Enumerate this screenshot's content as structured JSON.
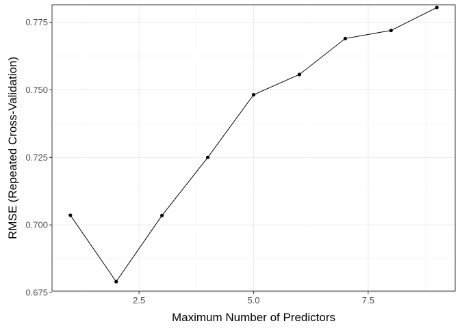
{
  "chart_data": {
    "type": "line",
    "title": "",
    "xlabel": "Maximum Number of Predictors",
    "ylabel": "RMSE (Repeated Cross-Validation)",
    "x": [
      1,
      2,
      3,
      4,
      5,
      6,
      7,
      8,
      9
    ],
    "series": [
      {
        "values": [
          0.7036,
          0.679,
          0.7035,
          0.725,
          0.7482,
          0.7557,
          0.769,
          0.772,
          0.7805
        ]
      }
    ],
    "xlim": [
      0.6,
      9.4
    ],
    "ylim": [
      0.6755,
      0.7815
    ],
    "xticks": [
      2.5,
      5.0,
      7.5
    ],
    "xtick_labels": [
      "2.5",
      "5.0",
      "7.5"
    ],
    "yticks": [
      0.675,
      0.7,
      0.725,
      0.75,
      0.775
    ],
    "ytick_labels": [
      "0.675",
      "0.700",
      "0.725",
      "0.750",
      "0.775"
    ],
    "grid": true,
    "legend": "none",
    "colors": {
      "line": "#000000",
      "point": "#000000",
      "grid": "#ebebeb",
      "border": "#333333"
    }
  }
}
